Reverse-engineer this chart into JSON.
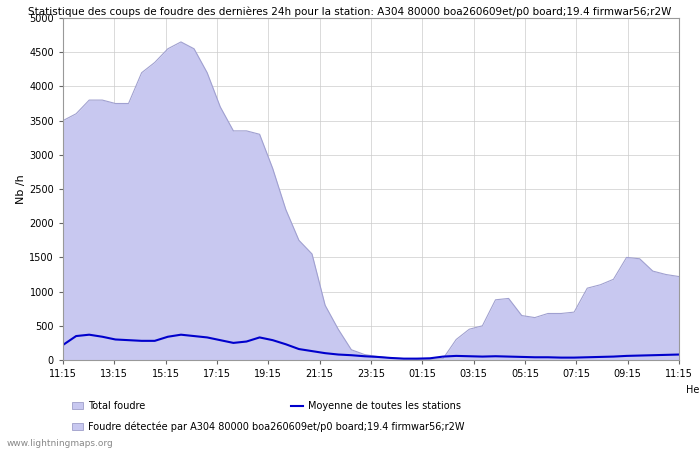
{
  "title": "Statistique des coups de foudre des dernières 24h pour la station: A304 80000 boa260609et/p0 board;19.4 firmwar56;r2W",
  "ylabel": "Nb /h",
  "xlabel": "Heure",
  "xlabels": [
    "11:15",
    "13:15",
    "15:15",
    "17:15",
    "19:15",
    "21:15",
    "23:15",
    "01:15",
    "03:15",
    "05:15",
    "07:15",
    "09:15",
    "11:15"
  ],
  "yticks": [
    0,
    500,
    1000,
    1500,
    2000,
    2500,
    3000,
    3500,
    4000,
    4500,
    5000
  ],
  "ylim": [
    0,
    5000
  ],
  "fill_color": "#c8c8f0",
  "fill_edge_color": "#a0a0d0",
  "line_color": "#0000cc",
  "background_color": "#ffffff",
  "grid_color": "#cccccc",
  "watermark": "www.lightningmaps.org",
  "legend_total": "Total foudre",
  "legend_moyenne": "Moyenne de toutes les stations",
  "legend_detected": "Foudre détectée par A304 80000 boa260609et/p0 board;19.4 firmwar56;r2W",
  "fill_values": [
    3500,
    3600,
    3800,
    3800,
    3750,
    3750,
    4200,
    4350,
    4550,
    4650,
    4550,
    4200,
    3700,
    3350,
    3350,
    3300,
    2800,
    2200,
    1750,
    1550,
    800,
    450,
    150,
    80,
    50,
    30,
    20,
    10,
    10,
    20,
    300,
    450,
    500,
    880,
    900,
    650,
    620,
    680,
    680,
    700,
    1050,
    1100,
    1180,
    1500,
    1480,
    1300,
    1250,
    1220
  ],
  "line_values": [
    220,
    350,
    370,
    340,
    300,
    290,
    280,
    280,
    340,
    370,
    350,
    330,
    290,
    250,
    270,
    330,
    290,
    230,
    160,
    130,
    100,
    80,
    70,
    55,
    45,
    30,
    20,
    20,
    25,
    50,
    60,
    55,
    50,
    55,
    50,
    45,
    40,
    40,
    35,
    35,
    40,
    45,
    50,
    60,
    65,
    70,
    75,
    80
  ]
}
